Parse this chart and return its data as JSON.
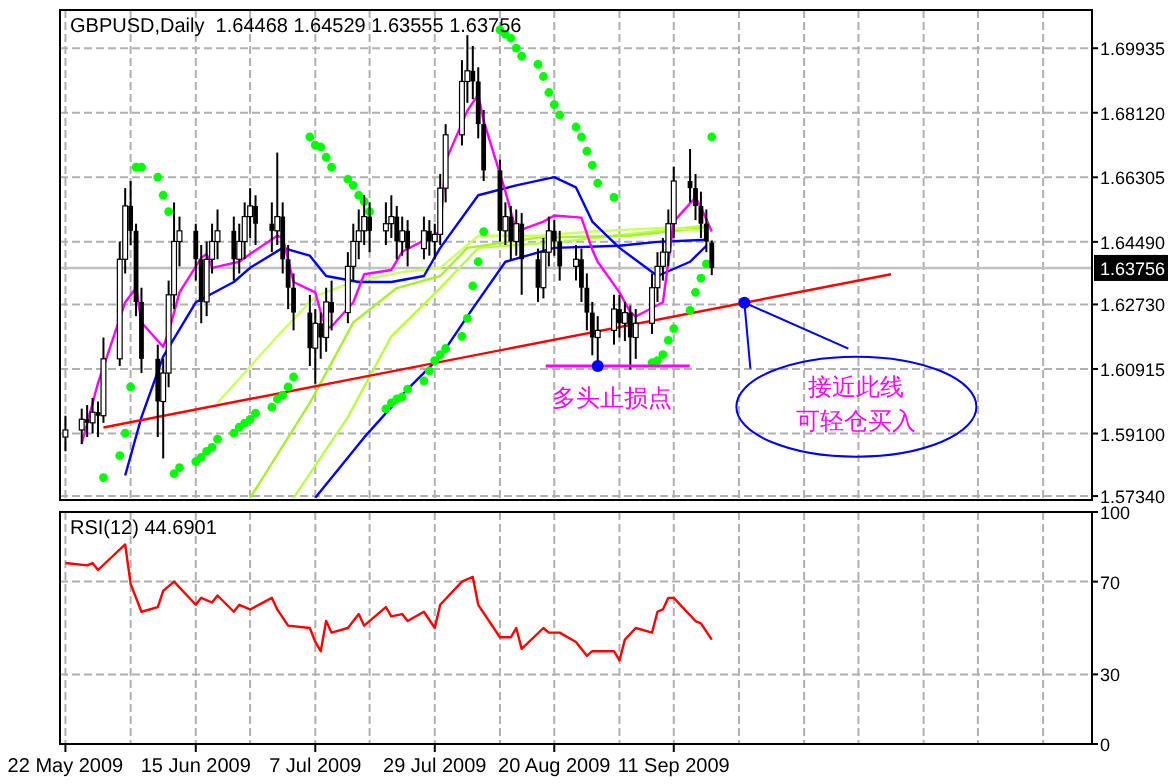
{
  "chart_data": [
    {
      "type": "candlestick",
      "title": "GBPUSD,Daily  1.64468 1.64529 1.63555 1.63756",
      "xlim": [
        "2009-05-21",
        "2009-11-27"
      ],
      "ylim": [
        1.5723,
        1.7101
      ],
      "yticks": [
        1.69935,
        {
          "value": 1.6812,
          "label": "1.68120"
        },
        1.66305,
        {
          "value": 1.6449,
          "label": "1.64490"
        },
        {
          "value": 1.6273,
          "label": "1.62730"
        },
        1.60915,
        {
          "value": 1.591,
          "label": "1.59100"
        },
        {
          "value": 1.5734,
          "label": "1.57340"
        }
      ],
      "xticks": [
        {
          "value": "2009-05-22",
          "label": null
        },
        {
          "value": "2009-06-03",
          "label": null
        },
        {
          "value": "2009-06-15",
          "label": null
        },
        {
          "value": "2009-06-25",
          "label": null
        },
        {
          "value": "2009-07-07",
          "label": null
        },
        {
          "value": "2009-07-17",
          "label": null
        },
        {
          "value": "2009-07-29",
          "label": null
        },
        {
          "value": "2009-08-10",
          "label": null
        },
        {
          "value": "2009-08-20",
          "label": null
        },
        {
          "value": "2009-09-01",
          "label": null
        },
        {
          "value": "2009-09-11",
          "label": null
        },
        {
          "value": "2009-09-23",
          "label": null
        },
        {
          "value": "2009-10-05",
          "label": null
        },
        {
          "value": "2009-10-15",
          "label": null
        },
        {
          "value": "2009-10-27",
          "label": null
        },
        {
          "value": "2009-11-06",
          "label": null
        },
        {
          "value": "2009-11-18",
          "label": null
        }
      ],
      "tick_labels": "y",
      "grid": true,
      "ref_lines": [
        {
          "axis": "y",
          "value": 1.63756,
          "label": "1.63756",
          "color": "#c0c0c0"
        }
      ],
      "annotations": [
        {
          "text": "多头止损点",
          "x": "2009-08-28",
          "y": 1.61
        },
        {
          "text": "接近此线",
          "x": "2009-09-24",
          "y": 1.6278
        },
        "可轻仓买入"
      ],
      "series": [
        {
          "type": "line",
          "color": "#b8ff40",
          "x": [
            "2009-07-03",
            "2009-07-13",
            "2009-07-21",
            "2009-07-30",
            "2009-08-06",
            "2009-08-21",
            "2009-09-17"
          ],
          "values": [
            1.5729,
            1.5956,
            1.6183,
            1.6319,
            1.6432,
            1.6449,
            1.6495
          ]
        },
        {
          "type": "line",
          "color": "#a8f030",
          "x": [
            "2009-06-25",
            "2009-07-06",
            "2009-07-14",
            "2009-07-22",
            "2009-07-30",
            "2009-08-04",
            "2009-08-17",
            "2009-09-03",
            "2009-09-17"
          ],
          "values": [
            1.5729,
            1.5996,
            1.6222,
            1.6319,
            1.6353,
            1.6432,
            1.6461,
            1.6466,
            1.6489
          ]
        },
        {
          "type": "line",
          "color": "#ccff66",
          "x": [
            "2009-06-19",
            "2009-06-30",
            "2009-07-07",
            "2009-07-14",
            "2009-07-23",
            "2009-07-30",
            "2009-08-06",
            "2009-08-17",
            "2009-08-27",
            "2009-09-10",
            "2009-09-17"
          ],
          "values": [
            1.5996,
            1.6183,
            1.6296,
            1.6336,
            1.6364,
            1.6376,
            1.6466,
            1.6466,
            1.6478,
            1.6489,
            1.6478
          ]
        },
        {
          "type": "line",
          "color": "#0000ff",
          "x": [
            "2009-07-07",
            "2009-07-16",
            "2009-07-24",
            "2009-07-30",
            "2009-08-05",
            "2009-08-11",
            "2009-08-20",
            "2009-09-01",
            "2009-09-08",
            "2009-09-17"
          ],
          "values": [
            1.5729,
            1.5899,
            1.6035,
            1.6126,
            1.6262,
            1.6393,
            1.6432,
            1.6438,
            1.6449,
            1.6455
          ]
        },
        {
          "type": "line",
          "color": "#0000ff",
          "x": [
            "2009-06-02",
            "2009-06-05",
            "2009-06-09",
            "2009-06-15",
            "2009-06-22",
            "2009-06-25",
            "2009-07-01",
            "2009-07-06",
            "2009-07-09",
            "2009-07-15",
            "2009-07-21",
            "2009-07-27",
            "2009-07-30",
            "2009-08-06",
            "2009-08-13",
            "2009-08-20",
            "2009-08-24",
            "2009-08-27",
            "2009-09-01",
            "2009-09-08",
            "2009-09-14",
            "2009-09-17"
          ],
          "values": [
            1.5792,
            1.5956,
            1.6126,
            1.6279,
            1.6336,
            1.6376,
            1.6432,
            1.641,
            1.6353,
            1.6336,
            1.6336,
            1.6353,
            1.6432,
            1.658,
            1.6608,
            1.6631,
            1.6602,
            1.6506,
            1.6432,
            1.6353,
            1.6393,
            1.6438
          ]
        },
        {
          "type": "line",
          "color": "#ff00ff",
          "x": [
            "2009-05-25",
            "2009-05-28",
            "2009-06-02",
            "2009-06-04",
            "2009-06-05",
            "2009-06-09",
            "2009-06-10",
            "2009-06-12",
            "2009-06-16",
            "2009-06-17",
            "2009-06-18",
            "2009-06-23",
            "2009-06-25",
            "2009-06-30",
            "2009-07-01",
            "2009-07-03",
            "2009-07-07",
            "2009-07-08",
            "2009-07-09",
            "2009-07-10",
            "2009-07-14",
            "2009-07-16",
            "2009-07-21",
            "2009-07-23",
            "2009-07-28",
            "2009-07-30",
            "2009-07-31",
            "2009-08-04",
            "2009-08-06",
            "2009-08-07",
            "2009-08-11",
            "2009-08-13",
            "2009-08-18",
            "2009-08-20",
            "2009-08-25",
            "2009-08-27",
            "2009-08-28",
            "2009-09-01",
            "2009-09-03",
            "2009-09-04",
            "2009-09-09",
            "2009-09-10",
            "2009-09-11",
            "2009-09-15",
            "2009-09-16",
            "2009-09-18"
          ],
          "values": [
            1.5882,
            1.6052,
            1.6279,
            1.6319,
            1.6222,
            1.6154,
            1.6194,
            1.6307,
            1.6404,
            1.6415,
            1.6376,
            1.6393,
            1.6415,
            1.6466,
            1.6461,
            1.6336,
            1.6307,
            1.6251,
            1.6205,
            1.6211,
            1.6279,
            1.6358,
            1.637,
            1.6421,
            1.6461,
            1.6478,
            1.6676,
            1.6818,
            1.6863,
            1.6789,
            1.6591,
            1.6478,
            1.6506,
            1.6523,
            1.6517,
            1.6427,
            1.6393,
            1.6307,
            1.6251,
            1.6239,
            1.6279,
            1.6393,
            1.6506,
            1.6574,
            1.6546,
            1.6478
          ]
        },
        {
          "type": "line",
          "color": "#ff0000",
          "x": [
            "2009-05-29",
            "2009-10-21"
          ],
          "values": [
            1.5927,
            1.6358
          ]
        },
        {
          "type": "scatter",
          "color": "#00ff00",
          "marker": "circle",
          "x": [
            "2009-05-29",
            "2009-06-01",
            "2009-06-02",
            "2009-06-03",
            "2009-06-04",
            "2009-06-05",
            "2009-06-08",
            "2009-06-09",
            "2009-06-10",
            "2009-06-11",
            "2009-06-12",
            "2009-06-15",
            "2009-06-16",
            "2009-06-17",
            "2009-06-18",
            "2009-06-19",
            "2009-06-22",
            "2009-06-23",
            "2009-06-24",
            "2009-06-25",
            "2009-06-26",
            "2009-06-29",
            "2009-06-30",
            "2009-07-01",
            "2009-07-02",
            "2009-07-03",
            "2009-07-06",
            "2009-07-07",
            "2009-07-08",
            "2009-07-09",
            "2009-07-10",
            "2009-07-13",
            "2009-07-14",
            "2009-07-15",
            "2009-07-16",
            "2009-07-17",
            "2009-07-20",
            "2009-07-21",
            "2009-07-22",
            "2009-07-23",
            "2009-07-24",
            "2009-07-27",
            "2009-07-28",
            "2009-07-29",
            "2009-07-30",
            "2009-07-31",
            "2009-08-03",
            "2009-08-04",
            "2009-08-05",
            "2009-08-06",
            "2009-08-07",
            "2009-08-10",
            "2009-08-11",
            "2009-08-12",
            "2009-08-13",
            "2009-08-14",
            "2009-08-17",
            "2009-08-18",
            "2009-08-19",
            "2009-08-20",
            "2009-08-21",
            "2009-08-24",
            "2009-08-25",
            "2009-08-26",
            "2009-08-27",
            "2009-08-28",
            "2009-08-31",
            "2009-09-07",
            "2009-09-08",
            "2009-09-09",
            "2009-09-10",
            "2009-09-11",
            "2009-09-14",
            "2009-09-15",
            "2009-09-16",
            "2009-09-17",
            "2009-09-18"
          ],
          "values": [
            1.5786,
            1.5848,
            1.5911,
            1.6041,
            1.6659,
            1.6659,
            1.6631,
            1.658,
            1.6534,
            1.5797,
            1.5814,
            1.5831,
            1.5843,
            1.586,
            1.5871,
            1.5894,
            1.5911,
            1.5928,
            1.5939,
            1.595,
            1.5967,
            1.5984,
            1.6007,
            1.6018,
            1.6041,
            1.6069,
            1.6744,
            1.6721,
            1.6716,
            1.6687,
            1.6659,
            1.6625,
            1.6608,
            1.658,
            1.6563,
            1.6534,
            1.5979,
            1.5996,
            1.6007,
            1.6013,
            1.6035,
            1.6058,
            1.6086,
            1.6115,
            1.6132,
            1.6149,
            1.6183,
            1.6234,
            1.6325,
            1.6393,
            1.6478,
            1.7045,
            1.7033,
            1.7022,
            1.6994,
            1.6971,
            1.6948,
            1.6914,
            1.6869,
            1.6835,
            1.6806,
            1.6772,
            1.6744,
            1.6704,
            1.6665,
            1.6614,
            1.6574,
            1.6109,
            1.6115,
            1.6132,
            1.6172,
            1.6205,
            1.6256,
            1.6307,
            1.6347,
            1.6387,
            1.6744
          ]
        },
        {
          "color": "#000000",
          "x": [
            "2009-05-22",
            "2009-05-25",
            "2009-05-26",
            "2009-05-27",
            "2009-05-28",
            "2009-05-29",
            "2009-06-01",
            "2009-06-02",
            "2009-06-03",
            "2009-06-04",
            "2009-06-05",
            "2009-06-08",
            "2009-06-09",
            "2009-06-10",
            "2009-06-11",
            "2009-06-12",
            "2009-06-15",
            "2009-06-16",
            "2009-06-17",
            "2009-06-18",
            "2009-06-19",
            "2009-06-22",
            "2009-06-23",
            "2009-06-24",
            "2009-06-25",
            "2009-06-26",
            "2009-06-29",
            "2009-06-30",
            "2009-07-01",
            "2009-07-02",
            "2009-07-03",
            "2009-07-06",
            "2009-07-07",
            "2009-07-08",
            "2009-07-09",
            "2009-07-10",
            "2009-07-13",
            "2009-07-14",
            "2009-07-15",
            "2009-07-16",
            "2009-07-17",
            "2009-07-20",
            "2009-07-21",
            "2009-07-22",
            "2009-07-23",
            "2009-07-24",
            "2009-07-27",
            "2009-07-28",
            "2009-07-29",
            "2009-07-30",
            "2009-07-31",
            "2009-08-03",
            "2009-08-04",
            "2009-08-05",
            "2009-08-06",
            "2009-08-07",
            "2009-08-10",
            "2009-08-11",
            "2009-08-12",
            "2009-08-13",
            "2009-08-14",
            "2009-08-17",
            "2009-08-18",
            "2009-08-19",
            "2009-08-20",
            "2009-08-21",
            "2009-08-24",
            "2009-08-25",
            "2009-08-26",
            "2009-08-27",
            "2009-08-28",
            "2009-08-31",
            "2009-09-01",
            "2009-09-02",
            "2009-09-03",
            "2009-09-04",
            "2009-09-07",
            "2009-09-08",
            "2009-09-09",
            "2009-09-10",
            "2009-09-11",
            "2009-09-14",
            "2009-09-15",
            "2009-09-16",
            "2009-09-17",
            "2009-09-18"
          ],
          "ohlc": [
            [
              1.59,
              1.596,
              1.586,
              1.592
            ],
            [
              1.592,
              1.598,
              1.588,
              1.595
            ],
            [
              1.595,
              1.599,
              1.59,
              1.594
            ],
            [
              1.594,
              1.601,
              1.591,
              1.597
            ],
            [
              1.597,
              1.6,
              1.59,
              1.596
            ],
            [
              1.596,
              1.618,
              1.594,
              1.612
            ],
            [
              1.612,
              1.645,
              1.61,
              1.64
            ],
            [
              1.64,
              1.66,
              1.636,
              1.655
            ],
            [
              1.655,
              1.662,
              1.644,
              1.648
            ],
            [
              1.648,
              1.65,
              1.624,
              1.628
            ],
            [
              1.628,
              1.632,
              1.608,
              1.612
            ],
            [
              1.612,
              1.616,
              1.59,
              1.6
            ],
            [
              1.6,
              1.612,
              1.584,
              1.608
            ],
            [
              1.608,
              1.634,
              1.604,
              1.63
            ],
            [
              1.63,
              1.656,
              1.626,
              1.645
            ],
            [
              1.645,
              1.652,
              1.638,
              1.648
            ],
            [
              1.648,
              1.65,
              1.634,
              1.64
            ],
            [
              1.64,
              1.644,
              1.622,
              1.628
            ],
            [
              1.628,
              1.645,
              1.624,
              1.64
            ],
            [
              1.64,
              1.65,
              1.636,
              1.645
            ],
            [
              1.645,
              1.654,
              1.64,
              1.648
            ],
            [
              1.648,
              1.652,
              1.634,
              1.64
            ],
            [
              1.64,
              1.65,
              1.636,
              1.645
            ],
            [
              1.645,
              1.656,
              1.64,
              1.652
            ],
            [
              1.652,
              1.66,
              1.646,
              1.655
            ],
            [
              1.655,
              1.658,
              1.644,
              1.65
            ],
            [
              1.65,
              1.656,
              1.642,
              1.648
            ],
            [
              1.648,
              1.67,
              1.644,
              1.652
            ],
            [
              1.652,
              1.656,
              1.636,
              1.64
            ],
            [
              1.64,
              1.644,
              1.626,
              1.632
            ],
            [
              1.632,
              1.636,
              1.62,
              1.625
            ],
            [
              1.625,
              1.63,
              1.61,
              1.615
            ],
            [
              1.615,
              1.626,
              1.605,
              1.622
            ],
            [
              1.622,
              1.625,
              1.612,
              1.618
            ],
            [
              1.618,
              1.632,
              1.614,
              1.628
            ],
            [
              1.628,
              1.634,
              1.62,
              1.625
            ],
            [
              1.625,
              1.642,
              1.622,
              1.638
            ],
            [
              1.638,
              1.65,
              1.634,
              1.645
            ],
            [
              1.645,
              1.654,
              1.64,
              1.648
            ],
            [
              1.648,
              1.658,
              1.644,
              1.652
            ],
            [
              1.652,
              1.656,
              1.642,
              1.648
            ],
            [
              1.648,
              1.656,
              1.644,
              1.65
            ],
            [
              1.65,
              1.658,
              1.646,
              1.652
            ],
            [
              1.652,
              1.655,
              1.64,
              1.645
            ],
            [
              1.645,
              1.652,
              1.641,
              1.648
            ],
            [
              1.648,
              1.651,
              1.638,
              1.643
            ],
            [
              1.643,
              1.652,
              1.64,
              1.648
            ],
            [
              1.648,
              1.651,
              1.641,
              1.645
            ],
            [
              1.645,
              1.65,
              1.64,
              1.647
            ],
            [
              1.647,
              1.664,
              1.644,
              1.66
            ],
            [
              1.66,
              1.678,
              1.656,
              1.675
            ],
            [
              1.675,
              1.696,
              1.672,
              1.69
            ],
            [
              1.69,
              1.703,
              1.684,
              1.693
            ],
            [
              1.693,
              1.7,
              1.685,
              1.69
            ],
            [
              1.69,
              1.694,
              1.674,
              1.678
            ],
            [
              1.678,
              1.682,
              1.662,
              1.665
            ],
            [
              1.665,
              1.668,
              1.645,
              1.648
            ],
            [
              1.648,
              1.656,
              1.644,
              1.652
            ],
            [
              1.652,
              1.655,
              1.64,
              1.645
            ],
            [
              1.645,
              1.654,
              1.641,
              1.65
            ],
            [
              1.65,
              1.653,
              1.63,
              1.64
            ],
            [
              1.64,
              1.643,
              1.628,
              1.632
            ],
            [
              1.632,
              1.646,
              1.629,
              1.642
            ],
            [
              1.642,
              1.652,
              1.638,
              1.648
            ],
            [
              1.648,
              1.651,
              1.641,
              1.645
            ],
            [
              1.645,
              1.648,
              1.634,
              1.638
            ],
            [
              1.638,
              1.644,
              1.634,
              1.64
            ],
            [
              1.64,
              1.643,
              1.628,
              1.632
            ],
            [
              1.632,
              1.636,
              1.62,
              1.625
            ],
            [
              1.625,
              1.628,
              1.613,
              1.618
            ],
            [
              1.618,
              1.624,
              1.61,
              1.62
            ],
            [
              1.62,
              1.63,
              1.616,
              1.626
            ],
            [
              1.626,
              1.63,
              1.618,
              1.622
            ],
            [
              1.622,
              1.628,
              1.617,
              1.625
            ],
            [
              1.625,
              1.627,
              1.609,
              1.618
            ],
            [
              1.618,
              1.626,
              1.612,
              1.622
            ],
            [
              1.622,
              1.636,
              1.619,
              1.632
            ],
            [
              1.632,
              1.642,
              1.628,
              1.638
            ],
            [
              1.638,
              1.646,
              1.634,
              1.642
            ],
            [
              1.642,
              1.654,
              1.638,
              1.65
            ],
            [
              1.65,
              1.666,
              1.646,
              1.662
            ],
            [
              1.662,
              1.671,
              1.656,
              1.66
            ],
            [
              1.66,
              1.664,
              1.651,
              1.655
            ],
            [
              1.655,
              1.659,
              1.646,
              1.65
            ],
            [
              1.65,
              1.654,
              1.642,
              1.645
            ],
            [
              1.64468,
              1.64529,
              1.63555,
              1.63756
            ]
          ]
        }
      ]
    },
    {
      "type": "line",
      "title": "RSI(12) 44.6901",
      "xlim": [
        "2009-05-21",
        "2009-11-27"
      ],
      "ylim": [
        0,
        100
      ],
      "yticks": [
        0,
        30,
        70,
        100
      ],
      "xticks": [
        {
          "value": "2009-05-22",
          "label": "22 May 2009"
        },
        {
          "value": "2009-06-03",
          "label": null
        },
        {
          "value": "2009-06-15",
          "label": "15 Jun 2009"
        },
        {
          "value": "2009-06-25",
          "label": null
        },
        {
          "value": "2009-07-07",
          "label": "7 Jul 2009"
        },
        {
          "value": "2009-07-17",
          "label": null
        },
        {
          "value": "2009-07-29",
          "label": "29 Jul 2009"
        },
        {
          "value": "2009-08-10",
          "label": null
        },
        {
          "value": "2009-08-20",
          "label": "20 Aug 2009"
        },
        {
          "value": "2009-09-01",
          "label": null
        },
        {
          "value": "2009-09-11",
          "label": "11 Sep 2009"
        },
        {
          "value": "2009-09-23",
          "label": null
        },
        {
          "value": "2009-10-05",
          "label": null
        },
        {
          "value": "2009-10-15",
          "label": null
        },
        {
          "value": "2009-10-27",
          "label": null
        },
        {
          "value": "2009-11-06",
          "label": null
        },
        {
          "value": "2009-11-18",
          "label": null
        }
      ],
      "grid": true,
      "series": [
        {
          "color": "#ff0000",
          "x": [
            "2009-05-22",
            "2009-05-26",
            "2009-05-27",
            "2009-05-28",
            "2009-06-02",
            "2009-06-03",
            "2009-06-05",
            "2009-06-08",
            "2009-06-09",
            "2009-06-11",
            "2009-06-15",
            "2009-06-16",
            "2009-06-18",
            "2009-06-19",
            "2009-06-22",
            "2009-06-23",
            "2009-06-25",
            "2009-06-29",
            "2009-06-30",
            "2009-07-02",
            "2009-07-06",
            "2009-07-07",
            "2009-07-08",
            "2009-07-09",
            "2009-07-10",
            "2009-07-13",
            "2009-07-15",
            "2009-07-16",
            "2009-07-20",
            "2009-07-21",
            "2009-07-23",
            "2009-07-24",
            "2009-07-27",
            "2009-07-29",
            "2009-07-30",
            "2009-08-03",
            "2009-08-05",
            "2009-08-06",
            "2009-08-10",
            "2009-08-12",
            "2009-08-13",
            "2009-08-14",
            "2009-08-18",
            "2009-08-19",
            "2009-08-21",
            "2009-08-24",
            "2009-08-26",
            "2009-08-27",
            "2009-08-31",
            "2009-09-01",
            "2009-09-02",
            "2009-09-04",
            "2009-09-07",
            "2009-09-08",
            "2009-09-09",
            "2009-09-10",
            "2009-09-11",
            "2009-09-15",
            "2009-09-16",
            "2009-09-18"
          ],
          "values": [
            78,
            77,
            78,
            75,
            86,
            69,
            57,
            59,
            66,
            70,
            60,
            63,
            61,
            64,
            57,
            60,
            58,
            63,
            58,
            51,
            50,
            44,
            40,
            53,
            48,
            50,
            56,
            51,
            59,
            55,
            56,
            53,
            57,
            50,
            60,
            70,
            72,
            60,
            46,
            46,
            50,
            41,
            50,
            48,
            48,
            44,
            38,
            40,
            40,
            36,
            45,
            50,
            48,
            57,
            58,
            63,
            63,
            53,
            52,
            45
          ]
        }
      ]
    }
  ]
}
